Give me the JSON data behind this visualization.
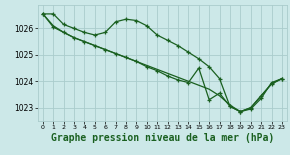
{
  "background_color": "#cce8e8",
  "grid_color": "#aacccc",
  "line_color": "#1a6020",
  "marker_color": "#1a6020",
  "title": "Graphe pression niveau de la mer (hPa)",
  "title_fontsize": 7.0,
  "title_bold": true,
  "xlim": [
    -0.5,
    23.5
  ],
  "ylim": [
    1022.5,
    1026.9
  ],
  "yticks": [
    1023,
    1024,
    1025,
    1026
  ],
  "xticks": [
    0,
    1,
    2,
    3,
    4,
    5,
    6,
    7,
    8,
    9,
    10,
    11,
    12,
    13,
    14,
    15,
    16,
    17,
    18,
    19,
    20,
    21,
    22,
    23
  ],
  "series": [
    {
      "x": [
        0,
        1,
        2,
        3,
        4,
        5,
        6,
        7,
        8,
        9,
        10,
        11,
        12,
        13,
        14,
        15,
        16,
        17,
        18,
        19,
        20,
        21,
        22,
        23
      ],
      "y": [
        1026.55,
        1026.55,
        1026.15,
        1026.0,
        1025.85,
        1025.75,
        1025.85,
        1026.25,
        1026.35,
        1026.3,
        1026.1,
        1025.75,
        1025.55,
        1025.35,
        1025.1,
        1024.85,
        1024.55,
        1024.1,
        1023.05,
        1022.85,
        1023.0,
        1023.45,
        1023.9,
        1024.1
      ],
      "marker": true,
      "linewidth": 0.9
    },
    {
      "x": [
        0,
        1,
        2,
        3,
        4,
        5,
        6,
        7,
        8,
        9,
        10,
        11,
        12,
        13,
        14,
        15,
        16,
        17,
        18,
        19,
        20,
        21,
        22,
        23
      ],
      "y": [
        1026.55,
        1026.1,
        1025.85,
        1025.65,
        1025.5,
        1025.35,
        1025.2,
        1025.05,
        1024.9,
        1024.75,
        1024.6,
        1024.45,
        1024.3,
        1024.15,
        1024.0,
        1023.85,
        1023.7,
        1023.45,
        1023.1,
        1022.85,
        1023.0,
        1023.45,
        1023.9,
        1024.1
      ],
      "marker": false,
      "linewidth": 0.9
    },
    {
      "x": [
        0,
        1,
        2,
        3,
        4,
        5,
        6,
        7,
        8,
        9,
        10,
        11,
        12,
        13,
        14,
        15,
        16,
        17,
        18,
        19,
        20,
        21,
        22,
        23
      ],
      "y": [
        1026.55,
        1026.05,
        1025.85,
        1025.65,
        1025.5,
        1025.35,
        1025.2,
        1025.05,
        1024.9,
        1024.75,
        1024.55,
        1024.4,
        1024.2,
        1024.05,
        1023.95,
        1024.5,
        1023.3,
        1023.55,
        1023.05,
        1022.85,
        1022.95,
        1023.35,
        1023.95,
        1024.1
      ],
      "marker": true,
      "linewidth": 0.9
    }
  ]
}
